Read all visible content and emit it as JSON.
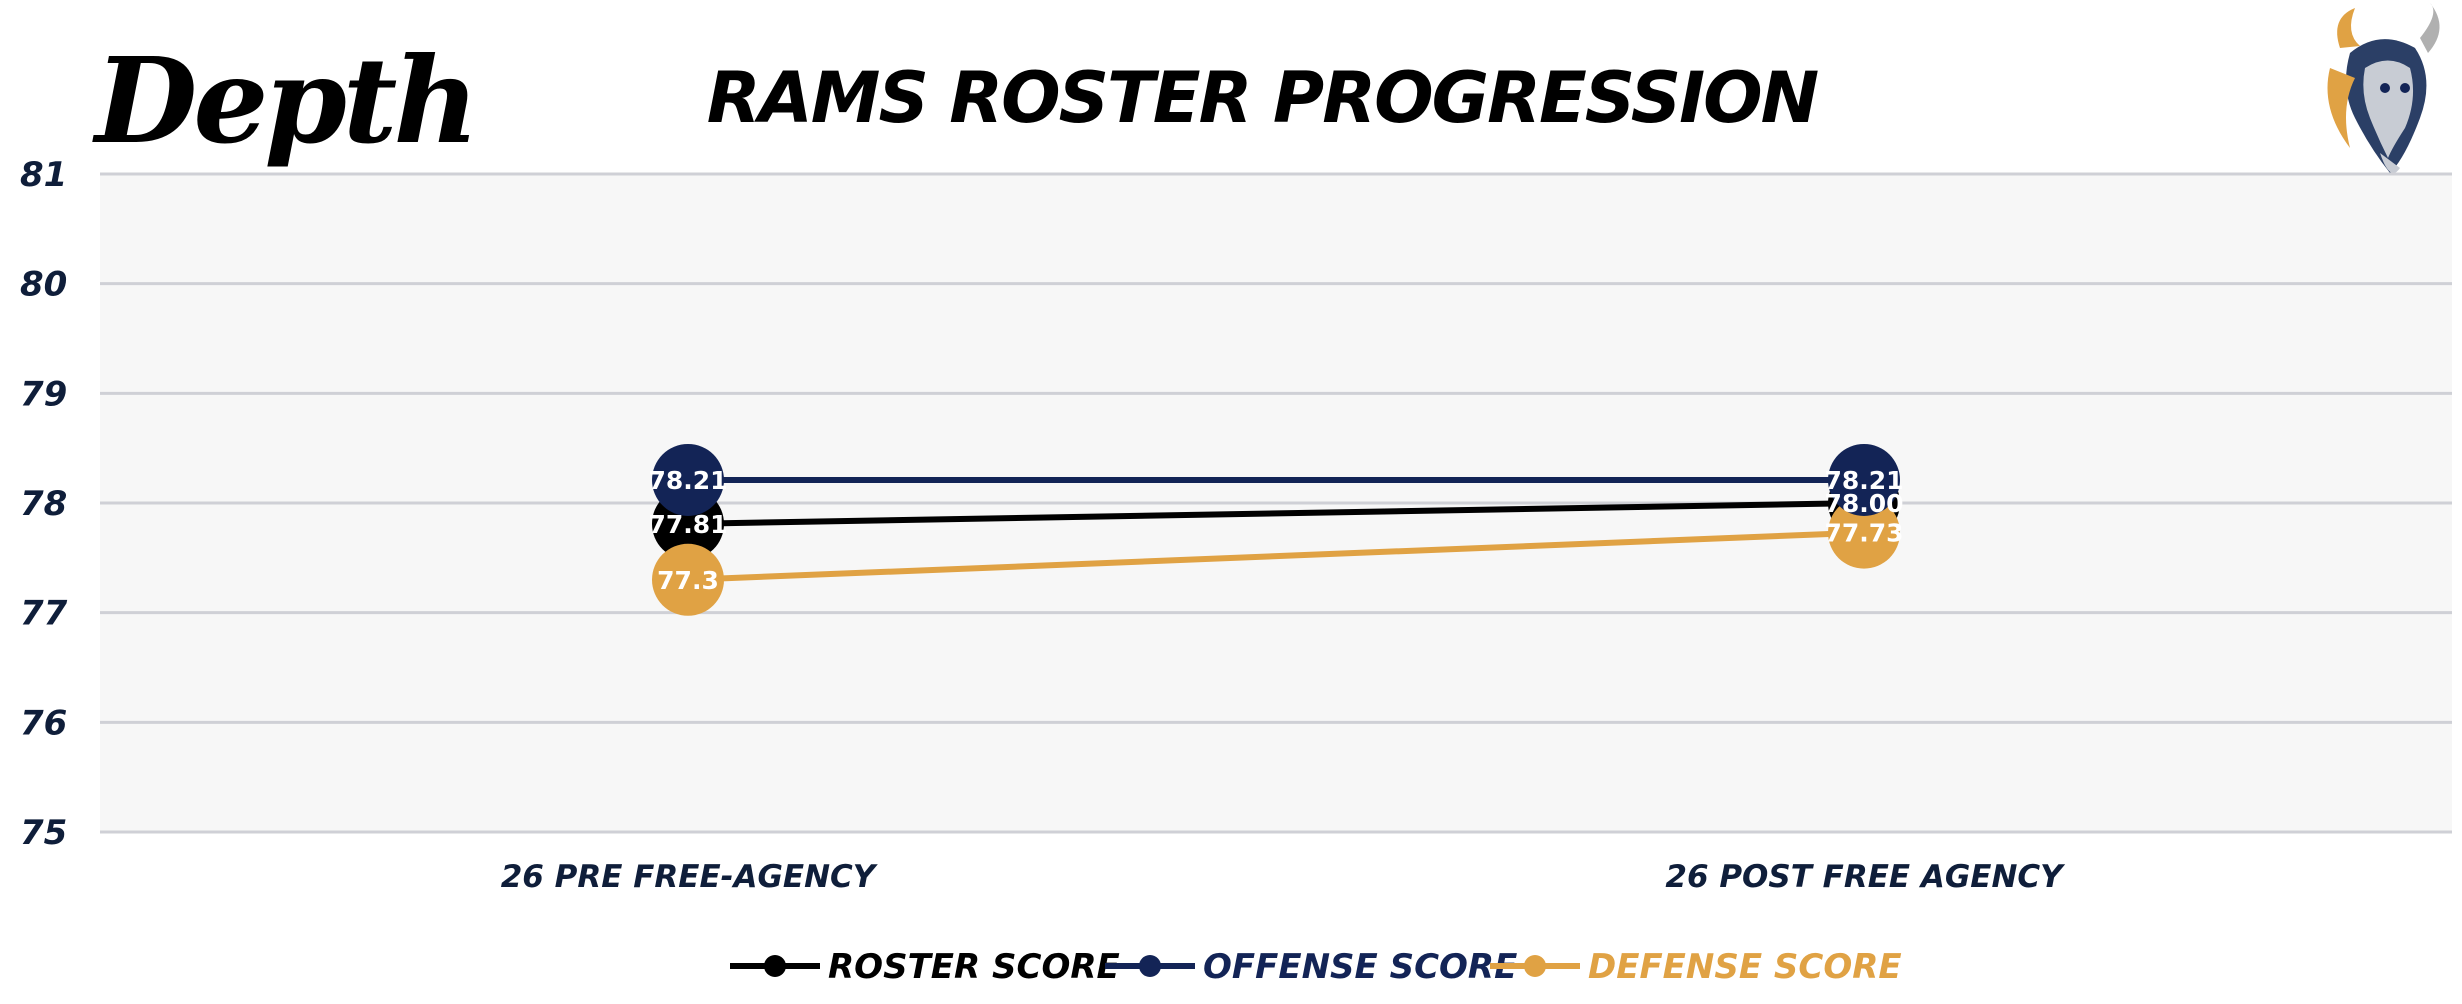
{
  "logo": {
    "text": "Depth",
    "icon": "goat-mascot-icon"
  },
  "chart_data": {
    "type": "line",
    "title": "RAMS ROSTER PROGRESSION",
    "categories": [
      "26 PRE FREE-AGENCY",
      "26 POST FREE AGENCY"
    ],
    "ylim": [
      75,
      81
    ],
    "yticks": [
      75,
      76,
      77,
      78,
      79,
      80,
      81
    ],
    "grid": true,
    "legend_position": "bottom",
    "series": [
      {
        "name": "ROSTER SCORE",
        "color": "#000000",
        "values": [
          77.81,
          78.0
        ],
        "labels": [
          "77.81",
          "78.00"
        ]
      },
      {
        "name": "OFFENSE SCORE",
        "color": "#132456",
        "values": [
          78.21,
          78.21
        ],
        "labels": [
          "78.21",
          "78.21"
        ]
      },
      {
        "name": "DEFENSE SCORE",
        "color": "#e0a244",
        "values": [
          77.3,
          77.73
        ],
        "labels": [
          "77.3",
          "77.73"
        ]
      }
    ]
  }
}
